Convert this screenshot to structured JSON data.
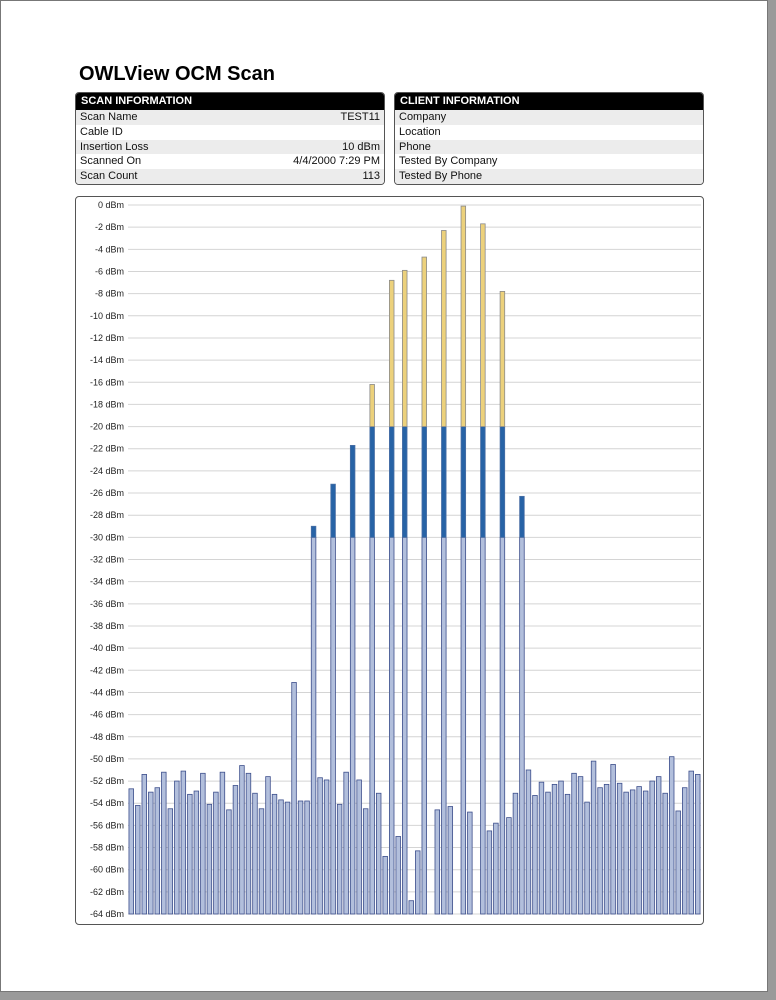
{
  "title": "OWLView OCM Scan",
  "scan_info": {
    "header": "SCAN INFORMATION",
    "rows": [
      {
        "label": "Scan Name",
        "value": "TEST11"
      },
      {
        "label": "Cable ID",
        "value": ""
      },
      {
        "label": "Insertion Loss",
        "value": "10 dBm"
      },
      {
        "label": "Scanned On",
        "value": "4/4/2000 7:29 PM"
      },
      {
        "label": "Scan Count",
        "value": "113"
      }
    ]
  },
  "client_info": {
    "header": "CLIENT INFORMATION",
    "rows": [
      {
        "label": "Company"
      },
      {
        "label": "Location"
      },
      {
        "label": "Phone"
      },
      {
        "label": "Tested By Company"
      },
      {
        "label": "Tested By Phone"
      }
    ]
  },
  "chart_data": {
    "type": "bar",
    "title": "",
    "xlabel": "",
    "ylabel": "",
    "unit": "dBm",
    "ylim": [
      -64,
      0
    ],
    "ytick_step": 2,
    "grid": true,
    "thresholds": {
      "high": -20,
      "mid": -30
    },
    "colors": {
      "high": "#ecd17c",
      "mid": "#2763a6",
      "low": "#b2bfdc",
      "low_border": "#3d4f8c",
      "grid": "#d4d4d4"
    },
    "values": [
      -52.7,
      -54.2,
      -51.4,
      -53.0,
      -52.6,
      -51.2,
      -54.5,
      -52.0,
      -51.1,
      -53.2,
      -52.9,
      -51.3,
      -54.1,
      -53.0,
      -51.2,
      -54.6,
      -52.4,
      -50.6,
      -51.3,
      -53.1,
      -54.5,
      -51.6,
      -53.2,
      -53.7,
      -53.9,
      -43.1,
      -53.8,
      -53.8,
      -29.0,
      -51.7,
      -51.9,
      -25.2,
      -54.1,
      -51.2,
      -21.7,
      -51.9,
      -54.5,
      -16.2,
      -53.1,
      -58.8,
      -6.8,
      -57.0,
      -5.9,
      -62.8,
      -58.3,
      -4.7,
      null,
      -54.6,
      -2.3,
      -54.3,
      null,
      -0.1,
      -54.8,
      null,
      -1.7,
      -56.5,
      -55.8,
      -7.8,
      -55.3,
      -53.1,
      -26.3,
      -51.0,
      -53.3,
      -52.1,
      -53.0,
      -52.3,
      -52.0,
      -53.2,
      -51.3,
      -51.6,
      -53.9,
      -50.2,
      -52.6,
      -52.3,
      -50.5,
      -52.2,
      -53.0,
      -52.8,
      -52.5,
      -52.9,
      -52.0,
      -51.6,
      -53.1,
      -49.8,
      -54.7,
      -52.6,
      -51.1,
      -51.4
    ]
  }
}
